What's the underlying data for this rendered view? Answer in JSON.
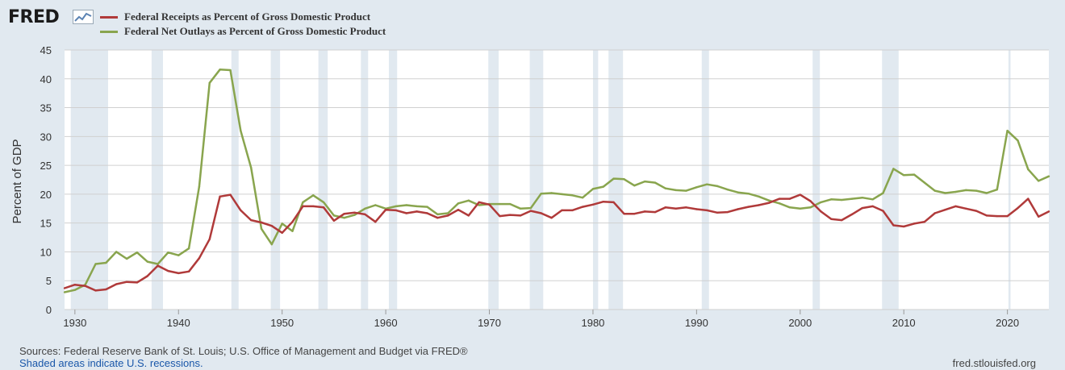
{
  "brand": {
    "logo_text": "FRED"
  },
  "colors": {
    "receipts": "#b03a3a",
    "outlays": "#89a54e",
    "recession": "#e1e9f0",
    "grid": "#d0d0d0"
  },
  "sources_text": "Sources: Federal Reserve Bank of St. Louis; U.S. Office of Management and Budget via FRED®",
  "recession_note": "Shaded areas indicate U.S. recessions.",
  "site_url": "fred.stlouisfed.org",
  "chart_data": {
    "type": "line",
    "title": "",
    "ylabel": "Percent of GDP",
    "xlabel": "",
    "xlim": [
      1929,
      2024
    ],
    "ylim": [
      0,
      45
    ],
    "yticks": [
      0,
      5,
      10,
      15,
      20,
      25,
      30,
      35,
      40,
      45
    ],
    "xticks": [
      1930,
      1940,
      1950,
      1960,
      1970,
      1980,
      1990,
      2000,
      2010,
      2020
    ],
    "recessions": [
      [
        1929.6,
        1933.2
      ],
      [
        1937.4,
        1938.5
      ],
      [
        1945.1,
        1945.8
      ],
      [
        1948.9,
        1949.8
      ],
      [
        1953.5,
        1954.4
      ],
      [
        1957.6,
        1958.3
      ],
      [
        1960.3,
        1961.1
      ],
      [
        1969.9,
        1970.9
      ],
      [
        1973.9,
        1975.2
      ],
      [
        1980.0,
        1980.5
      ],
      [
        1981.5,
        1982.9
      ],
      [
        1990.5,
        1991.2
      ],
      [
        2001.2,
        2001.9
      ],
      [
        2007.9,
        2009.5
      ],
      [
        2020.1,
        2020.3
      ]
    ],
    "x": [
      1929,
      1930,
      1931,
      1932,
      1933,
      1934,
      1935,
      1936,
      1937,
      1938,
      1939,
      1940,
      1941,
      1942,
      1943,
      1944,
      1945,
      1946,
      1947,
      1948,
      1949,
      1950,
      1951,
      1952,
      1953,
      1954,
      1955,
      1956,
      1957,
      1958,
      1959,
      1960,
      1961,
      1962,
      1963,
      1964,
      1965,
      1966,
      1967,
      1968,
      1969,
      1970,
      1971,
      1972,
      1973,
      1974,
      1975,
      1976,
      1977,
      1978,
      1979,
      1980,
      1981,
      1982,
      1983,
      1984,
      1985,
      1986,
      1987,
      1988,
      1989,
      1990,
      1991,
      1992,
      1993,
      1994,
      1995,
      1996,
      1997,
      1998,
      1999,
      2000,
      2001,
      2002,
      2003,
      2004,
      2005,
      2006,
      2007,
      2008,
      2009,
      2010,
      2011,
      2012,
      2013,
      2014,
      2015,
      2016,
      2017,
      2018,
      2019,
      2020,
      2021,
      2022,
      2023,
      2024
    ],
    "series": [
      {
        "name": "Federal Receipts as Percent of Gross Domestic Product",
        "values": [
          3.7,
          4.3,
          4.1,
          3.3,
          3.5,
          4.4,
          4.8,
          4.7,
          5.8,
          7.6,
          6.7,
          6.3,
          6.6,
          8.9,
          12.2,
          19.6,
          19.9,
          17.2,
          15.5,
          15.1,
          14.5,
          13.3,
          15.2,
          17.9,
          17.9,
          17.7,
          15.4,
          16.6,
          16.8,
          16.5,
          15.2,
          17.3,
          17.2,
          16.7,
          17.0,
          16.7,
          15.9,
          16.3,
          17.3,
          16.3,
          18.6,
          18.2,
          16.2,
          16.4,
          16.3,
          17.1,
          16.7,
          15.9,
          17.2,
          17.2,
          17.8,
          18.2,
          18.7,
          18.6,
          16.6,
          16.6,
          17.0,
          16.9,
          17.7,
          17.5,
          17.7,
          17.4,
          17.2,
          16.8,
          16.9,
          17.4,
          17.8,
          18.1,
          18.5,
          19.2,
          19.2,
          19.9,
          18.8,
          17.0,
          15.7,
          15.5,
          16.5,
          17.6,
          17.9,
          17.1,
          14.6,
          14.4,
          14.9,
          15.2,
          16.7,
          17.3,
          17.9,
          17.5,
          17.1,
          16.3,
          16.2,
          16.2,
          17.6,
          19.2,
          16.1,
          17.0
        ]
      },
      {
        "name": "Federal Net Outlays as Percent of Gross Domestic Product",
        "values": [
          3.0,
          3.4,
          4.3,
          7.9,
          8.1,
          10.0,
          8.8,
          9.9,
          8.3,
          7.9,
          9.9,
          9.4,
          10.6,
          21.3,
          39.3,
          41.6,
          41.5,
          31.0,
          24.6,
          14.0,
          11.3,
          14.9,
          13.6,
          18.6,
          19.8,
          18.6,
          16.3,
          15.9,
          16.4,
          17.5,
          18.1,
          17.5,
          17.9,
          18.1,
          17.9,
          17.8,
          16.5,
          16.7,
          18.4,
          18.9,
          18.1,
          18.3,
          18.3,
          18.3,
          17.5,
          17.6,
          20.1,
          20.2,
          20.0,
          19.8,
          19.4,
          20.9,
          21.3,
          22.7,
          22.6,
          21.5,
          22.2,
          22.0,
          21.0,
          20.7,
          20.6,
          21.2,
          21.7,
          21.4,
          20.8,
          20.3,
          20.1,
          19.6,
          18.9,
          18.4,
          17.7,
          17.5,
          17.7,
          18.6,
          19.1,
          19.0,
          19.2,
          19.4,
          19.1,
          20.2,
          24.4,
          23.3,
          23.4,
          22.0,
          20.6,
          20.2,
          20.4,
          20.7,
          20.6,
          20.2,
          20.8,
          31.0,
          29.3,
          24.3,
          22.3,
          23.1
        ]
      }
    ]
  }
}
